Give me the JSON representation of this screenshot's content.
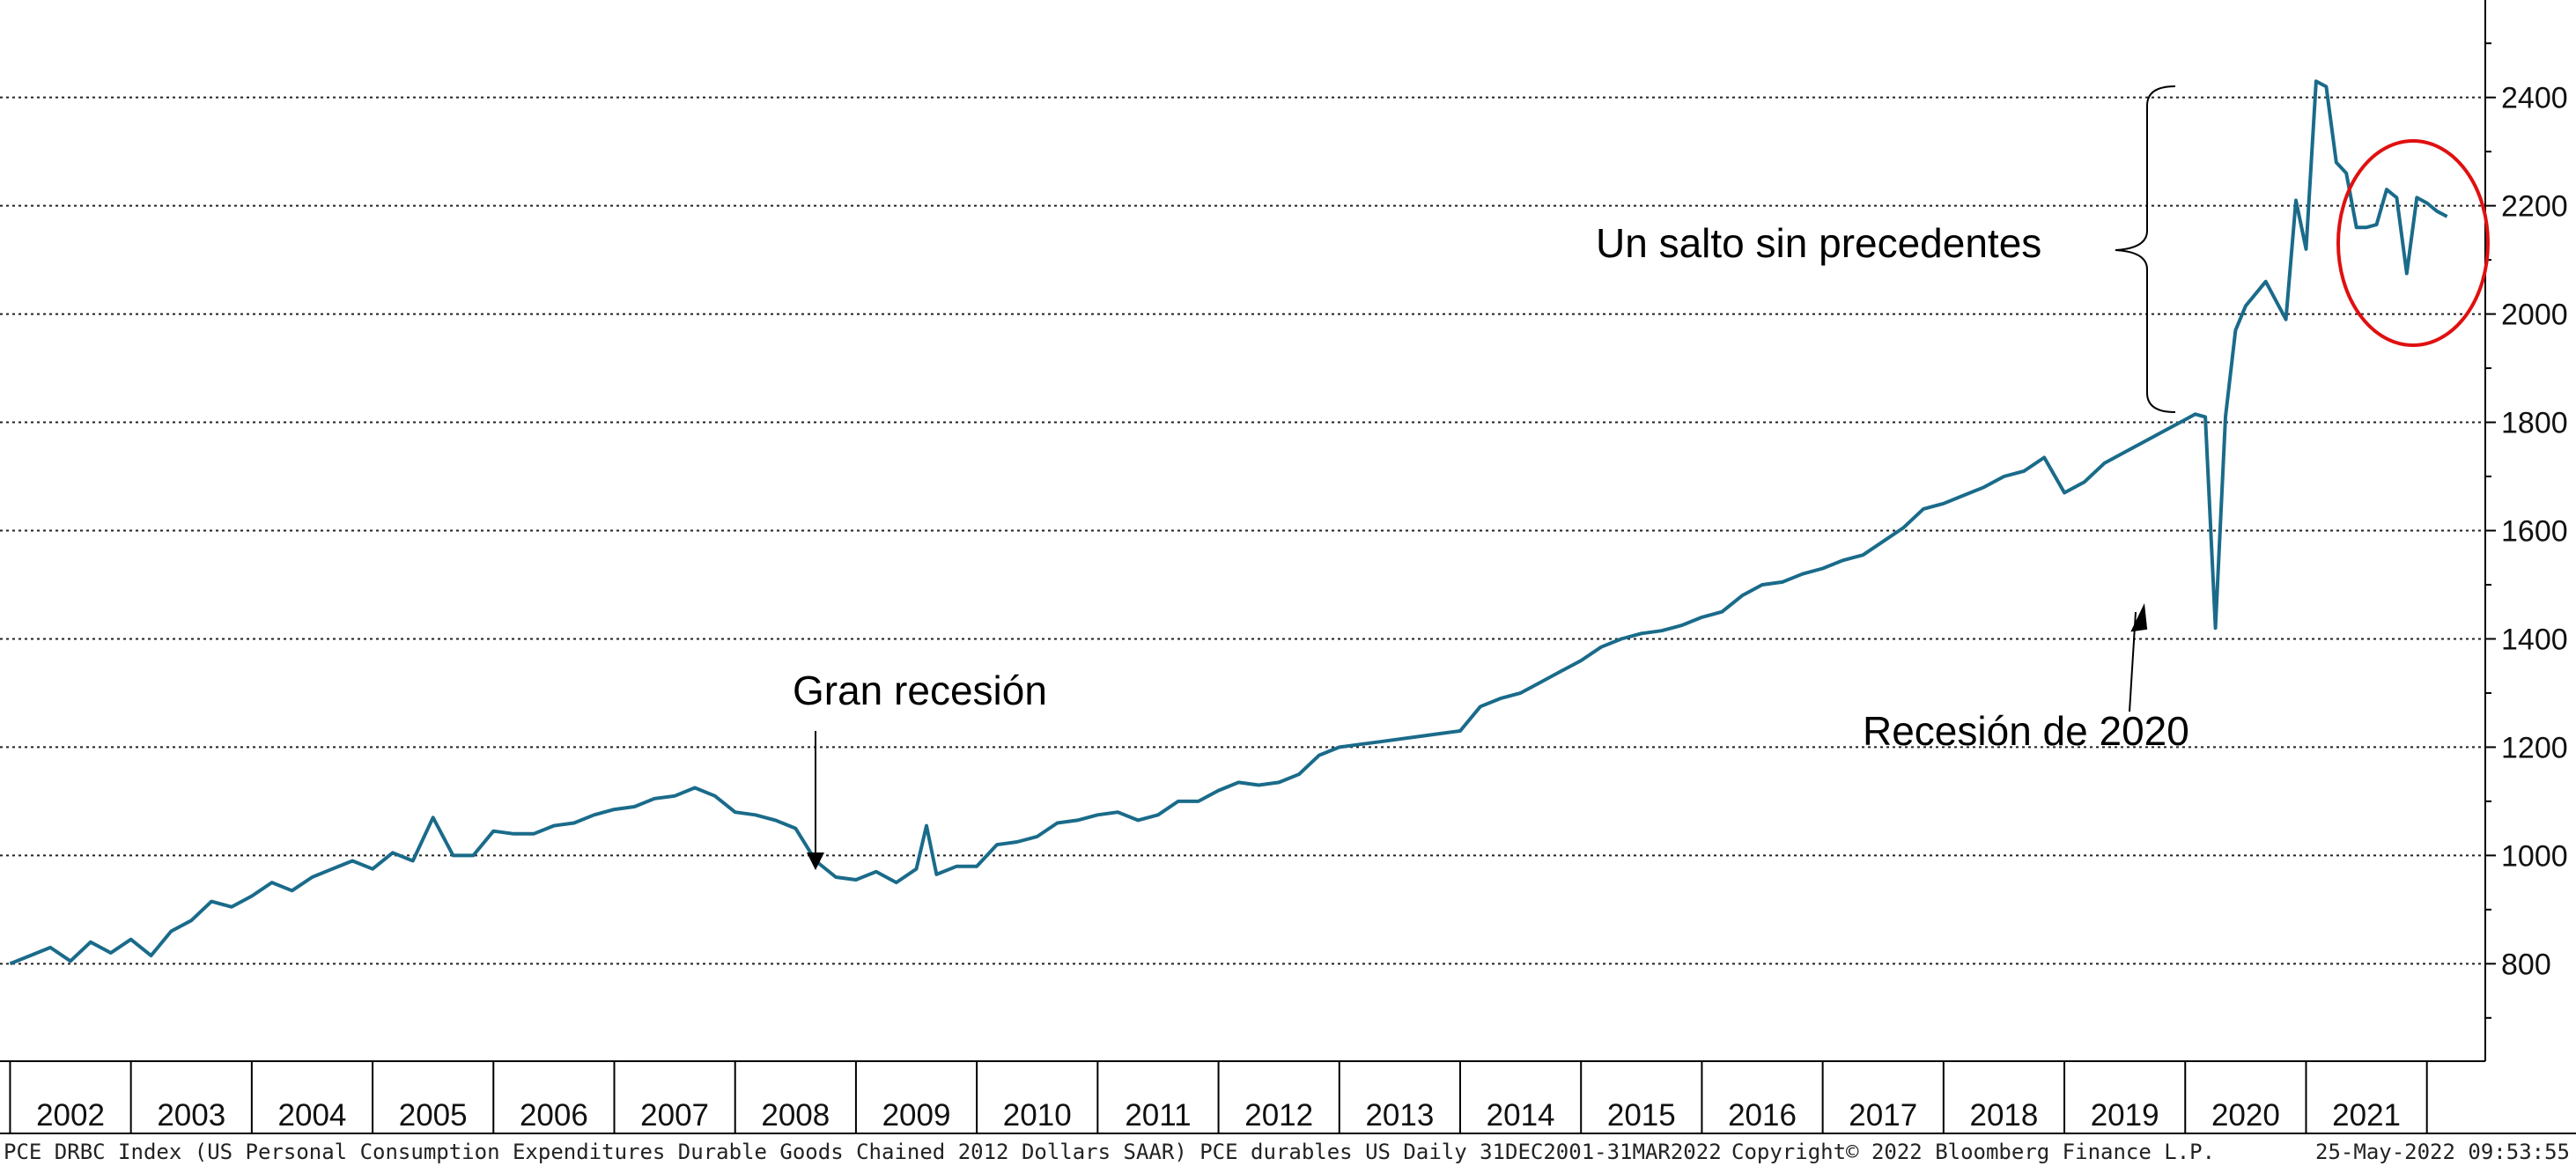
{
  "chart_data": {
    "type": "line",
    "series": [
      {
        "color": "#1a6b8a",
        "x": [
          "2002-01",
          "2002-03",
          "2002-05",
          "2002-07",
          "2002-09",
          "2002-11",
          "2003-01",
          "2003-03",
          "2003-05",
          "2003-07",
          "2003-09",
          "2003-11",
          "2004-01",
          "2004-03",
          "2004-05",
          "2004-07",
          "2004-09",
          "2004-11",
          "2005-01",
          "2005-03",
          "2005-05",
          "2005-07",
          "2005-09",
          "2005-11",
          "2006-01",
          "2006-03",
          "2006-05",
          "2006-07",
          "2006-09",
          "2006-11",
          "2007-01",
          "2007-03",
          "2007-05",
          "2007-07",
          "2007-09",
          "2007-11",
          "2008-01",
          "2008-03",
          "2008-05",
          "2008-07",
          "2008-09",
          "2008-11",
          "2009-01",
          "2009-03",
          "2009-05",
          "2009-07",
          "2009-08",
          "2009-09",
          "2009-11",
          "2010-01",
          "2010-03",
          "2010-05",
          "2010-07",
          "2010-09",
          "2010-11",
          "2011-01",
          "2011-03",
          "2011-05",
          "2011-07",
          "2011-09",
          "2011-11",
          "2012-01",
          "2012-03",
          "2012-05",
          "2012-07",
          "2012-09",
          "2012-11",
          "2013-01",
          "2013-03",
          "2013-05",
          "2013-07",
          "2013-09",
          "2013-11",
          "2014-01",
          "2014-03",
          "2014-05",
          "2014-07",
          "2014-09",
          "2014-11",
          "2015-01",
          "2015-03",
          "2015-05",
          "2015-07",
          "2015-09",
          "2015-11",
          "2016-01",
          "2016-03",
          "2016-05",
          "2016-07",
          "2016-09",
          "2016-11",
          "2017-01",
          "2017-03",
          "2017-05",
          "2017-07",
          "2017-09",
          "2017-11",
          "2018-01",
          "2018-03",
          "2018-05",
          "2018-07",
          "2018-09",
          "2018-11",
          "2019-01",
          "2019-03",
          "2019-05",
          "2019-07",
          "2019-09",
          "2019-11",
          "2020-01",
          "2020-02",
          "2020-03",
          "2020-04",
          "2020-05",
          "2020-06",
          "2020-07",
          "2020-09",
          "2020-11",
          "2020-12",
          "2021-01",
          "2021-02",
          "2021-03",
          "2021-04",
          "2021-05",
          "2021-06",
          "2021-07",
          "2021-08",
          "2021-09",
          "2021-10",
          "2021-11",
          "2021-12",
          "2022-01",
          "2022-02",
          "2022-03"
        ],
        "y": [
          800,
          815,
          830,
          805,
          840,
          820,
          845,
          815,
          860,
          880,
          915,
          905,
          925,
          950,
          935,
          960,
          975,
          990,
          975,
          1005,
          990,
          1070,
          1000,
          1000,
          1045,
          1040,
          1040,
          1055,
          1060,
          1075,
          1085,
          1090,
          1105,
          1110,
          1125,
          1110,
          1080,
          1075,
          1065,
          1050,
          990,
          960,
          955,
          970,
          950,
          975,
          1055,
          965,
          980,
          980,
          1020,
          1025,
          1035,
          1060,
          1065,
          1075,
          1080,
          1065,
          1075,
          1100,
          1100,
          1120,
          1135,
          1130,
          1135,
          1150,
          1185,
          1200,
          1205,
          1210,
          1215,
          1220,
          1225,
          1230,
          1275,
          1290,
          1300,
          1320,
          1340,
          1360,
          1385,
          1400,
          1410,
          1415,
          1425,
          1440,
          1450,
          1480,
          1500,
          1505,
          1520,
          1530,
          1545,
          1555,
          1580,
          1605,
          1640,
          1650,
          1665,
          1680,
          1700,
          1710,
          1735,
          1670,
          1690,
          1725,
          1745,
          1765,
          1785,
          1805,
          1815,
          1810,
          1420,
          1810,
          1970,
          2015,
          2060,
          1990,
          2210,
          2120,
          2430,
          2420,
          2280,
          2260,
          2160,
          2160,
          2165,
          2230,
          2215,
          2075,
          2215,
          2205,
          2190,
          2180
        ]
      }
    ],
    "x_ticks": [
      "2002",
      "2003",
      "2004",
      "2005",
      "2006",
      "2007",
      "2008",
      "2009",
      "2010",
      "2011",
      "2012",
      "2013",
      "2014",
      "2015",
      "2016",
      "2017",
      "2018",
      "2019",
      "2020",
      "2021"
    ],
    "y_ticks": [
      800,
      1000,
      1200,
      1400,
      1600,
      1800,
      2000,
      2200,
      2400
    ],
    "ylim": [
      620,
      2580
    ],
    "xlim": [
      "2001-12",
      "2022-04"
    ],
    "grid": "horizontal dotted",
    "y_axis_side": "right",
    "annotations": [
      {
        "text": "Gran recesión",
        "points_to": "2008-09"
      },
      {
        "text": "Recesión de 2020",
        "points_to": "2020-03"
      },
      {
        "text": "Un salto sin precedentes",
        "spans": [
          1820,
          2430
        ]
      }
    ],
    "highlight": {
      "shape": "ellipse",
      "color": "#e01010",
      "around": [
        "2021-05",
        "2022-03"
      ]
    }
  },
  "footer": {
    "source": "PCE DRBC Index (US Personal Consumption Expenditures Durable Goods Chained 2012 Dollars SAAR) PCE durables US  Daily 31DEC2001-31MAR2022",
    "copyright": "Copyright© 2022 Bloomberg Finance L.P.",
    "timestamp": "25-May-2022 09:53:55"
  }
}
